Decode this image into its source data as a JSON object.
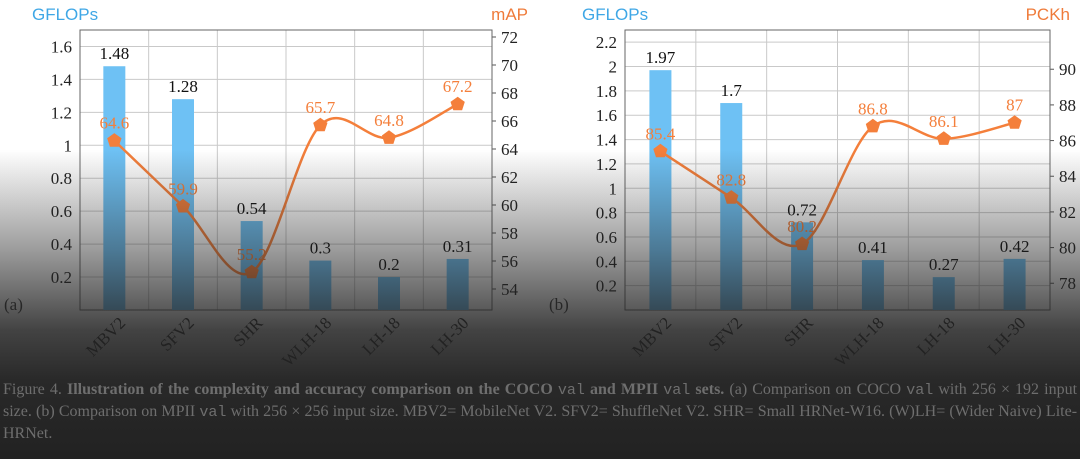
{
  "colors": {
    "bar": "#6ec1f4",
    "line": "#f47f3b",
    "left_axis_title": "#3fa7e6",
    "right_axis_title": "#ef7b3a",
    "grid": "#c9c9c9",
    "tick_text": "#222222"
  },
  "chart_data": [
    {
      "type": "bar",
      "panel_label": "(a)",
      "categories": [
        "MBV2",
        "SFV2",
        "SHR",
        "WLH-18",
        "LH-18",
        "LH-30"
      ],
      "y_left": {
        "title": "GFLOPs",
        "ylim": [
          0,
          1.7
        ],
        "ticks": [
          0.2,
          0.4,
          0.6,
          0.8,
          1,
          1.2,
          1.4,
          1.6
        ],
        "tick_labels": [
          "0.2",
          "0.4",
          "0.6",
          "0.8",
          "1",
          "1.2",
          "1.4",
          "1.6"
        ]
      },
      "y_right": {
        "title": "mAP",
        "ylim": [
          52.5,
          72.5
        ],
        "ticks": [
          54,
          56,
          58,
          60,
          62,
          64,
          66,
          68,
          70,
          72
        ],
        "tick_labels": [
          "54",
          "56",
          "58",
          "60",
          "62",
          "64",
          "66",
          "68",
          "70",
          "72"
        ]
      },
      "series": [
        {
          "name": "GFLOPs",
          "kind": "bar",
          "axis": "left",
          "values": [
            1.48,
            1.28,
            0.54,
            0.3,
            0.2,
            0.31
          ],
          "labels": [
            "1.48",
            "1.28",
            "0.54",
            "0.3",
            "0.2",
            "0.31"
          ]
        },
        {
          "name": "mAP",
          "kind": "line",
          "axis": "right",
          "values": [
            64.6,
            59.9,
            55.2,
            65.7,
            64.8,
            67.2
          ],
          "labels": [
            "64.6",
            "59.9",
            "55.2",
            "65.7",
            "64.8",
            "67.2"
          ]
        }
      ],
      "grid": true
    },
    {
      "type": "bar",
      "panel_label": "(b)",
      "categories": [
        "MBV2",
        "SFV2",
        "SHR",
        "WLH-18",
        "LH-18",
        "LH-30"
      ],
      "y_left": {
        "title": "GFLOPs",
        "ylim": [
          0,
          2.3
        ],
        "ticks": [
          0.2,
          0.4,
          0.6,
          0.8,
          1,
          1.2,
          1.4,
          1.6,
          1.8,
          2,
          2.2
        ],
        "tick_labels": [
          "0.2",
          "0.4",
          "0.6",
          "0.8",
          "1",
          "1.2",
          "1.4",
          "1.6",
          "1.8",
          "2",
          "2.2"
        ]
      },
      "y_right": {
        "title": "PCKh",
        "ylim": [
          76.5,
          92.2
        ],
        "ticks": [
          78,
          80,
          82,
          84,
          86,
          88,
          90
        ],
        "tick_labels": [
          "78",
          "80",
          "82",
          "84",
          "86",
          "88",
          "90"
        ]
      },
      "series": [
        {
          "name": "GFLOPs",
          "kind": "bar",
          "axis": "left",
          "values": [
            1.97,
            1.7,
            0.72,
            0.41,
            0.27,
            0.42
          ],
          "labels": [
            "1.97",
            "1.7",
            "0.72",
            "0.41",
            "0.27",
            "0.42"
          ]
        },
        {
          "name": "PCKh",
          "kind": "line",
          "axis": "right",
          "values": [
            85.4,
            82.8,
            80.2,
            86.8,
            86.1,
            87
          ],
          "labels": [
            "85.4",
            "82.8",
            "80.2",
            "86.8",
            "86.1",
            "87"
          ]
        }
      ],
      "grid": true
    }
  ],
  "caption": {
    "prefix": "Figure 4.",
    "bold_1": "Illustration of the complexity and accuracy comparison on the COCO",
    "code_1": "val",
    "bold_2": "and MPII",
    "code_2": "val",
    "bold_3": "sets.",
    "text_1": "(a) Comparison on COCO",
    "code_3": "val",
    "text_2": "with 256 × 192 input size. (b) Comparison on MPII",
    "code_4": "val",
    "text_3": "with 256 × 256 input size. MBV2= MobileNet V2. SFV2= ShuffleNet V2. SHR= Small HRNet-W16. (W)LH= (Wider Naive) Lite-HRNet."
  }
}
